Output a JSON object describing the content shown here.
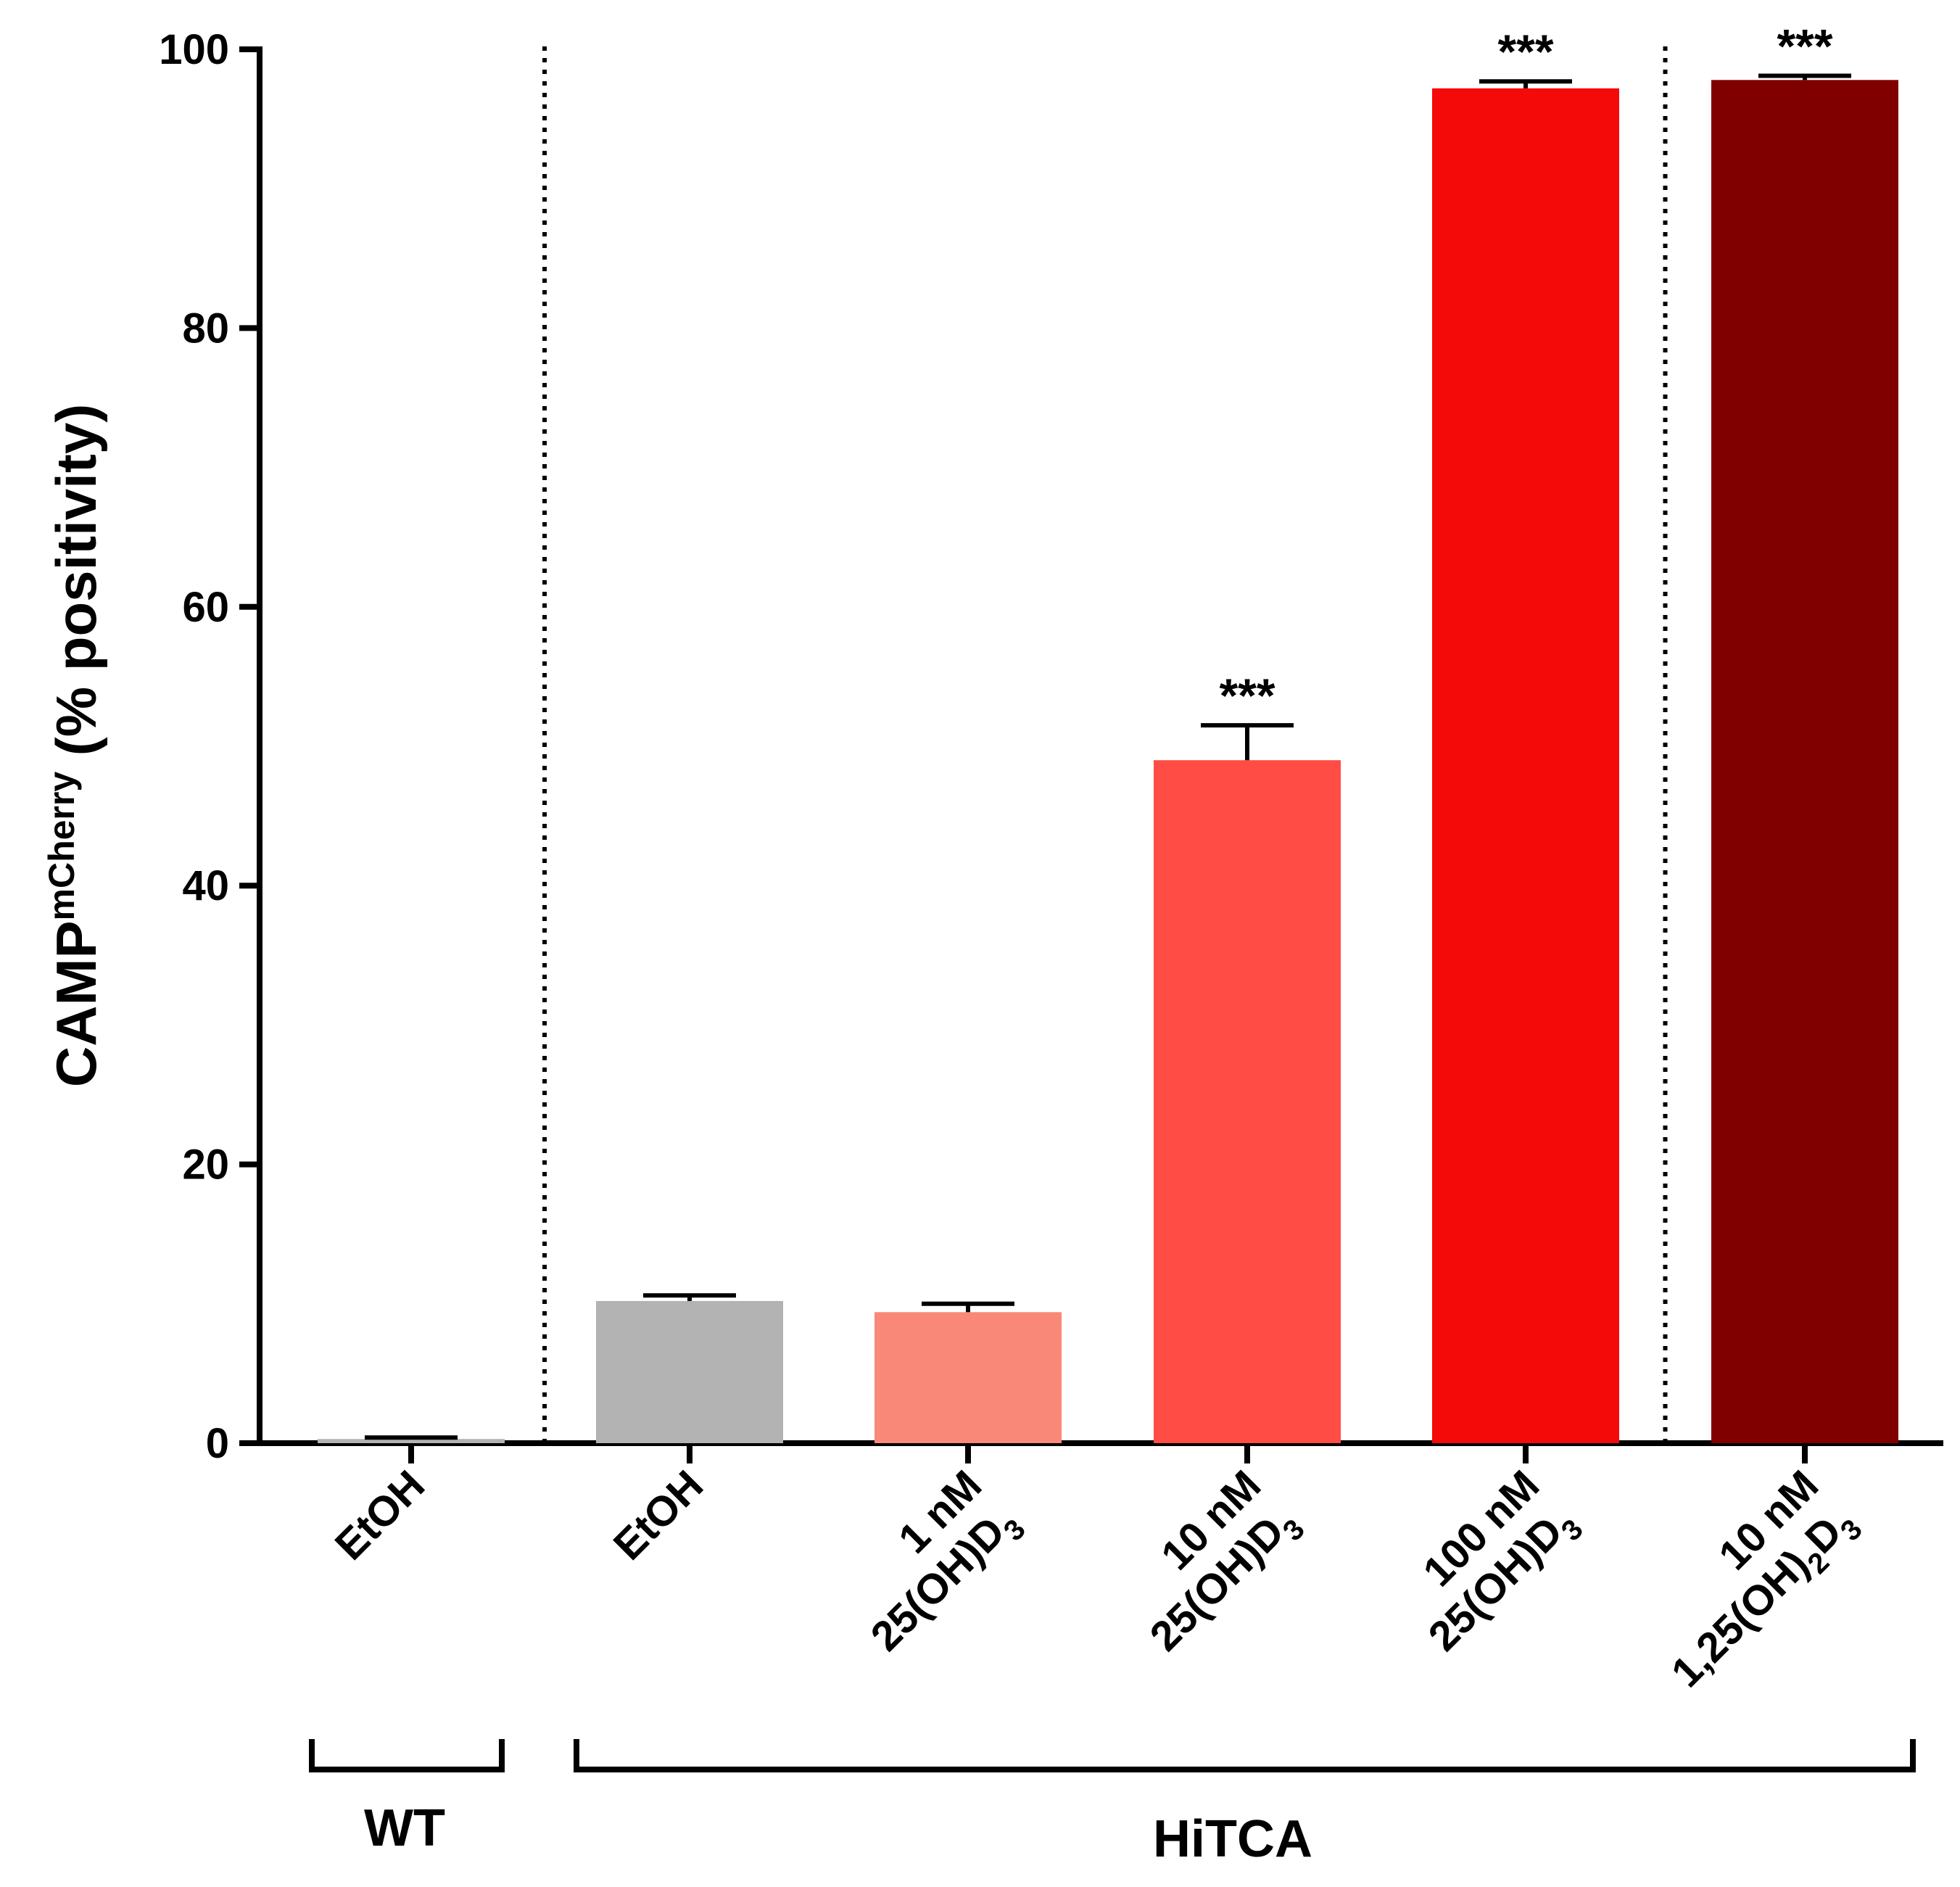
{
  "chart_data": {
    "type": "bar",
    "ylabel": {
      "main": "CAMP",
      "superscript": "mCherry",
      "suffix": " (% positivity)"
    },
    "ylim": [
      0,
      100
    ],
    "yticks": [
      0,
      20,
      40,
      60,
      80,
      100
    ],
    "tick_labels": [
      "0",
      "20",
      "40",
      "60",
      "80",
      "100"
    ],
    "bars": [
      {
        "line1": "EtOH",
        "line2": null,
        "value": 0.3,
        "error": 0.1,
        "color": "#b3b3b3",
        "sig": ""
      },
      {
        "line1": "EtOH",
        "line2": null,
        "value": 10.2,
        "error": 0.4,
        "color": "#b3b3b3",
        "sig": ""
      },
      {
        "line1": "1 nM",
        "line2": {
          "pre": "25(OH)D",
          "sub": "3",
          "post": ""
        },
        "value": 9.4,
        "error": 0.6,
        "color": "#fa8878",
        "sig": ""
      },
      {
        "line1": "10 nM",
        "line2": {
          "pre": "25(OH)D",
          "sub": "3",
          "post": ""
        },
        "value": 49.0,
        "error": 2.5,
        "color": "#ff4d45",
        "sig": "***"
      },
      {
        "line1": "100 nM",
        "line2": {
          "pre": "25(OH)D",
          "sub": "3",
          "post": ""
        },
        "value": 97.2,
        "error": 0.5,
        "color": "#f50a0a",
        "sig": "***"
      },
      {
        "line1": "10 nM",
        "line2": {
          "pre": "1,25(OH)",
          "sub": "2",
          "post": "D",
          "sub2": "3"
        },
        "value": 97.8,
        "error": 0.3,
        "color": "#800000",
        "sig": "***"
      }
    ],
    "groups": [
      {
        "label": "WT",
        "from_bar": 0,
        "to_bar": 0
      },
      {
        "label": "HiTCA",
        "from_bar": 1,
        "to_bar": 5
      }
    ],
    "separators_after_bar": [
      0,
      4
    ]
  }
}
